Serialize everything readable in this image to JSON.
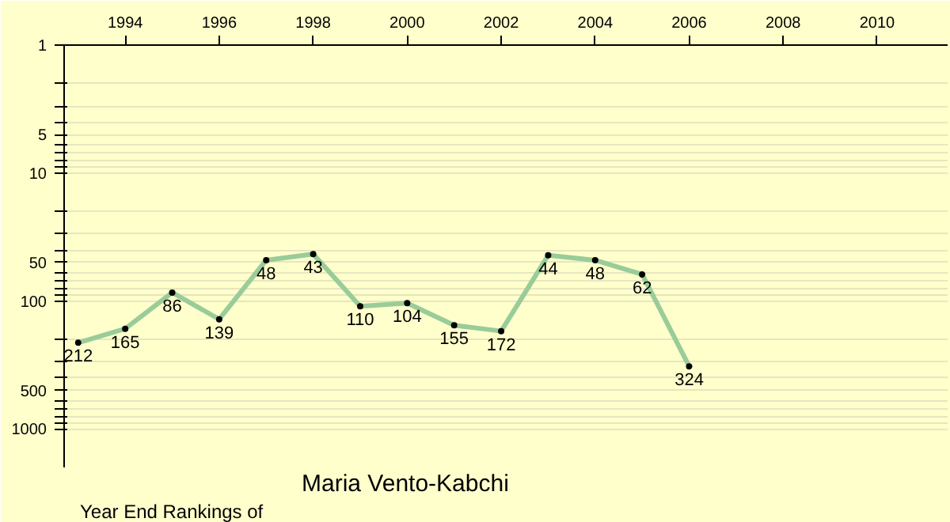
{
  "chart_data": {
    "type": "line",
    "title": "Year End Rankings of",
    "subtitle": "Maria Vento-Kabchi",
    "x": [
      1993,
      1994,
      1995,
      1996,
      1997,
      1998,
      1999,
      2000,
      2001,
      2002,
      2003,
      2004,
      2005,
      2006
    ],
    "series": [
      {
        "color": "#99cc99",
        "values": [
          212,
          165,
          86,
          139,
          48,
          43,
          110,
          104,
          155,
          172,
          44,
          48,
          62,
          324
        ]
      }
    ],
    "xlim": [
      1992.7,
      2011.5
    ],
    "xticks": [
      1994,
      1996,
      1998,
      2000,
      2002,
      2004,
      2006,
      2008,
      2010
    ],
    "ylim": [
      2000,
      1
    ],
    "log": "y",
    "yticks": [
      1,
      {
        "value": 2,
        "label": null
      },
      {
        "value": 3,
        "label": null
      },
      {
        "value": 4,
        "label": null
      },
      5,
      {
        "value": 6,
        "label": null
      },
      {
        "value": 7,
        "label": null
      },
      {
        "value": 8,
        "label": null
      },
      {
        "value": 9,
        "label": null
      },
      10,
      {
        "value": 20,
        "label": null
      },
      {
        "value": 30,
        "label": null
      },
      {
        "value": 40,
        "label": null
      },
      50,
      {
        "value": 60,
        "label": null
      },
      {
        "value": 70,
        "label": null
      },
      {
        "value": 80,
        "label": null
      },
      {
        "value": 90,
        "label": null
      },
      100,
      {
        "value": 200,
        "label": null
      },
      {
        "value": 300,
        "label": null
      },
      {
        "value": 400,
        "label": null
      },
      500,
      {
        "value": 600,
        "label": null
      },
      {
        "value": 700,
        "label": null
      },
      {
        "value": 800,
        "label": null
      },
      {
        "value": 900,
        "label": null
      },
      1000
    ],
    "grid": "y",
    "marker": "circle",
    "line_style": "solid",
    "data_labels": true
  }
}
